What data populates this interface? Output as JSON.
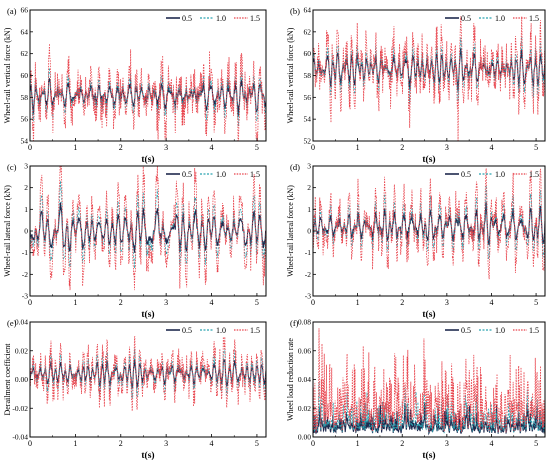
{
  "chart_data": [
    {
      "type": "line",
      "panel_label": "(a)",
      "xlabel": "t(s)",
      "ylabel": "Wheel-rail vertical force (kN)",
      "xlim": [
        0,
        5.2
      ],
      "ylim": [
        54,
        66
      ],
      "xticks": [
        0,
        1,
        2,
        3,
        4,
        5
      ],
      "yticks": [
        54,
        56,
        58,
        60,
        62,
        64,
        66
      ],
      "legend_position": "top-right",
      "series": [
        {
          "name": "0.5",
          "baseline": 58.2,
          "amp": 1.0,
          "spike": 0.6
        },
        {
          "name": "1.0",
          "baseline": 58.2,
          "amp": 1.6,
          "spike": 0.8
        },
        {
          "name": "1.5",
          "baseline": 58.2,
          "amp": 2.6,
          "spike": 2.4
        }
      ]
    },
    {
      "type": "line",
      "panel_label": "(b)",
      "xlabel": "t(s)",
      "ylabel": "Wheel-rail vertical force (kN)",
      "xlim": [
        0,
        5.2
      ],
      "ylim": [
        52,
        64
      ],
      "xticks": [
        0,
        1,
        2,
        3,
        4,
        5
      ],
      "yticks": [
        52,
        54,
        56,
        58,
        60,
        62,
        64
      ],
      "legend_position": "top-right",
      "series": [
        {
          "name": "0.5",
          "baseline": 58.6,
          "amp": 0.9,
          "spike": 0.5
        },
        {
          "name": "1.0",
          "baseline": 58.6,
          "amp": 1.4,
          "spike": 0.8
        },
        {
          "name": "1.5",
          "baseline": 58.6,
          "amp": 2.3,
          "spike": 2.2
        }
      ]
    },
    {
      "type": "line",
      "panel_label": "(c)",
      "xlabel": "t(s)",
      "ylabel": "Wheel-rail lateral force (kN)",
      "xlim": [
        0,
        5.2
      ],
      "ylim": [
        -3,
        3
      ],
      "xticks": [
        0,
        1,
        2,
        3,
        4,
        5
      ],
      "yticks": [
        -3,
        -2,
        -1,
        0,
        1,
        2,
        3
      ],
      "legend_position": "top-right",
      "series": [
        {
          "name": "0.5",
          "baseline": 0,
          "amp": 0.5,
          "spike": 0.25
        },
        {
          "name": "1.0",
          "baseline": 0,
          "amp": 0.9,
          "spike": 0.35
        },
        {
          "name": "1.5",
          "baseline": 0,
          "amp": 1.4,
          "spike": 0.8
        }
      ]
    },
    {
      "type": "line",
      "panel_label": "(d)",
      "xlabel": "t(s)",
      "ylabel": "Wheel-rail lateral force (kN)",
      "xlim": [
        0,
        5.2
      ],
      "ylim": [
        -3,
        3
      ],
      "xticks": [
        0,
        1,
        2,
        3,
        4,
        5
      ],
      "yticks": [
        -3,
        -2,
        -1,
        0,
        1,
        2,
        3
      ],
      "legend_position": "top-right",
      "series": [
        {
          "name": "0.5",
          "baseline": 0.2,
          "amp": 0.5,
          "spike": 0.25
        },
        {
          "name": "1.0",
          "baseline": 0.2,
          "amp": 0.9,
          "spike": 0.35
        },
        {
          "name": "1.5",
          "baseline": 0.2,
          "amp": 1.4,
          "spike": 0.8
        }
      ]
    },
    {
      "type": "line",
      "panel_label": "(e)",
      "xlabel": "t(s)",
      "ylabel": "Derailment coefficient",
      "xlim": [
        0,
        5.2
      ],
      "ylim": [
        -0.04,
        0.04
      ],
      "xticks": [
        0,
        1,
        2,
        3,
        4,
        5
      ],
      "yticks": [
        -0.04,
        -0.02,
        0.0,
        0.02,
        0.04
      ],
      "ytick_labels": [
        "-0.04",
        "-0.02",
        "0.00",
        "0.02",
        "0.04"
      ],
      "legend_position": "top-right",
      "series": [
        {
          "name": "0.5",
          "baseline": 0.004,
          "amp": 0.007,
          "spike": 0.003
        },
        {
          "name": "1.0",
          "baseline": 0.004,
          "amp": 0.012,
          "spike": 0.005
        },
        {
          "name": "1.5",
          "baseline": 0.004,
          "amp": 0.018,
          "spike": 0.012
        }
      ]
    },
    {
      "type": "line",
      "panel_label": "(f)",
      "xlabel": "t(s)",
      "ylabel": "Wheel load reduction rate",
      "xlim": [
        0,
        5.2
      ],
      "ylim": [
        0,
        0.08
      ],
      "xticks": [
        0,
        1,
        2,
        3,
        4,
        5
      ],
      "yticks": [
        0.0,
        0.02,
        0.04,
        0.06,
        0.08
      ],
      "ytick_labels": [
        "0.00",
        "0.02",
        "0.04",
        "0.06",
        "0.08"
      ],
      "legend_position": "top-right",
      "series": [
        {
          "name": "0.5",
          "baseline": 0.002,
          "amp": 0.01,
          "spike": 0.012,
          "positive": true
        },
        {
          "name": "1.0",
          "baseline": 0.002,
          "amp": 0.016,
          "spike": 0.018,
          "positive": true
        },
        {
          "name": "1.5",
          "baseline": 0.002,
          "amp": 0.026,
          "spike": 0.045,
          "positive": true
        }
      ]
    }
  ],
  "colors": {
    "series_0_5": "#1f2a4e",
    "series_1_0": "#2ba3b0",
    "series_1_5": "#e8414a"
  }
}
